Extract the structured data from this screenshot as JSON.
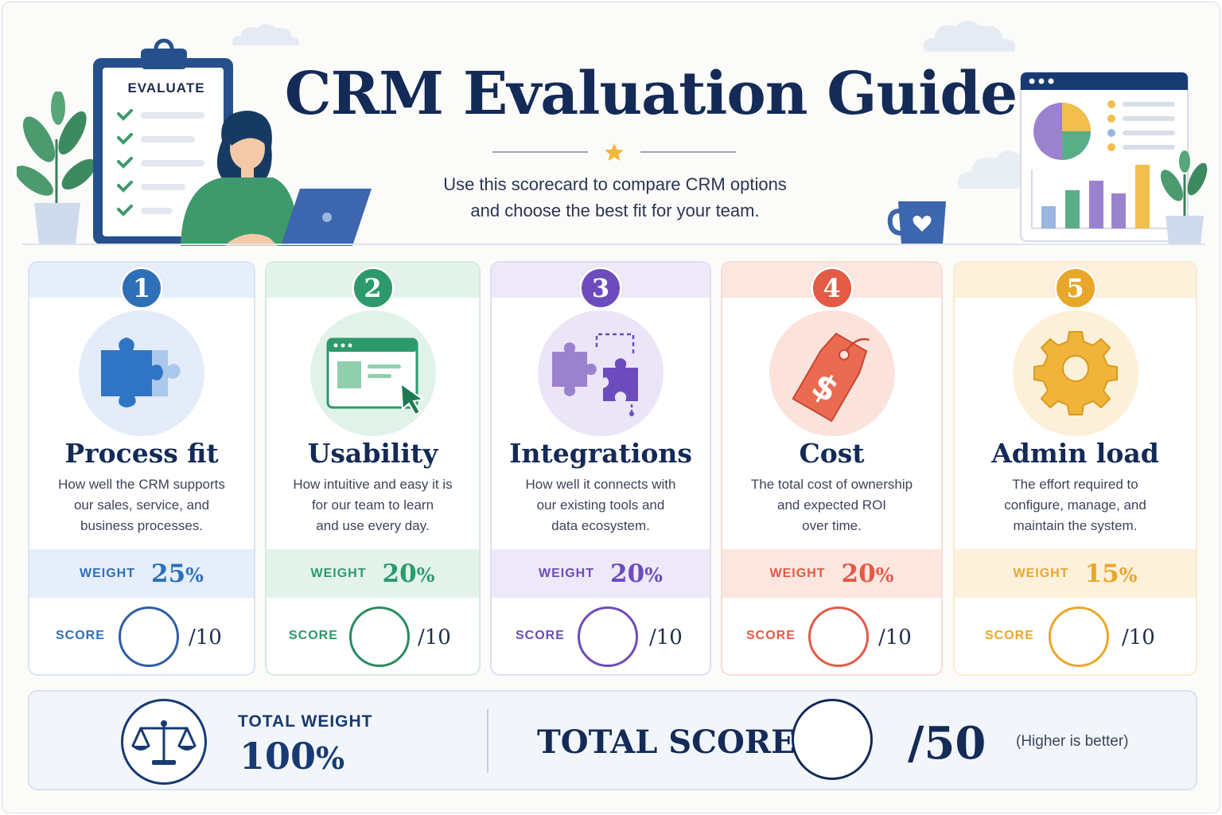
{
  "header": {
    "title": "CRM Evaluation Guide",
    "subtitle_lines": [
      "Use this scorecard to compare CRM options",
      "and choose the best fit for your team."
    ],
    "clipboard_label": "EVALUATE"
  },
  "criteria": [
    {
      "number": "1",
      "title": "Process fit",
      "desc": [
        "How well the CRM supports",
        "our sales, service, and",
        "business processes."
      ],
      "weight_label": "WEIGHT",
      "weight_value": "25",
      "weight_unit": "%",
      "score_label": "SCORE",
      "score_max": "/10",
      "icon": "puzzle-icon",
      "accent": "#2f6fb8"
    },
    {
      "number": "2",
      "title": "Usability",
      "desc": [
        "How intuitive and easy it is",
        "for our team to learn",
        "and use every day."
      ],
      "weight_label": "WEIGHT",
      "weight_value": "20",
      "weight_unit": "%",
      "score_label": "SCORE",
      "score_max": "/10",
      "icon": "browser-cursor-icon",
      "accent": "#2c9a6a"
    },
    {
      "number": "3",
      "title": "Integrations",
      "desc": [
        "How well it connects with",
        "our existing tools and",
        "data ecosystem."
      ],
      "weight_label": "WEIGHT",
      "weight_value": "20",
      "weight_unit": "%",
      "score_label": "SCORE",
      "score_max": "/10",
      "icon": "connected-puzzle-icon",
      "accent": "#6c4cbd"
    },
    {
      "number": "4",
      "title": "Cost",
      "desc": [
        "The total cost of ownership",
        "and expected ROI",
        "over time."
      ],
      "weight_label": "WEIGHT",
      "weight_value": "20",
      "weight_unit": "%",
      "score_label": "SCORE",
      "score_max": "/10",
      "icon": "price-tag-icon",
      "accent": "#e35a45"
    },
    {
      "number": "5",
      "title": "Admin load",
      "desc": [
        "The effort required to",
        "configure, manage, and",
        "maintain the system."
      ],
      "weight_label": "WEIGHT",
      "weight_value": "15",
      "weight_unit": "%",
      "score_label": "SCORE",
      "score_max": "/10",
      "icon": "gear-icon",
      "accent": "#e9a72a"
    }
  ],
  "total": {
    "weight_label": "TOTAL WEIGHT",
    "weight_value": "100",
    "weight_unit": "%",
    "score_label": "TOTAL SCORE",
    "score_max": "/50",
    "note": "(Higher is better)"
  },
  "colors": {
    "navy": "#142a57",
    "blue": "#2f6fb8",
    "green": "#2c9a6a",
    "purple": "#6c4cbd",
    "red": "#e35a45",
    "yellow": "#e9a72a"
  }
}
